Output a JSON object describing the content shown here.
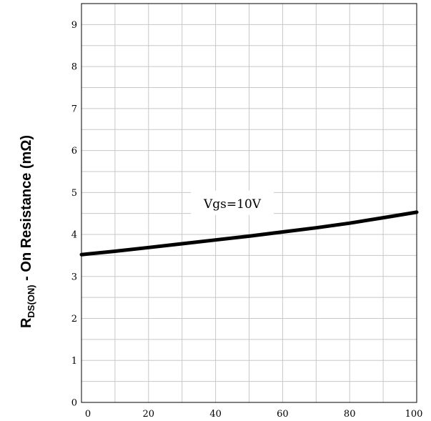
{
  "chart_data": {
    "type": "line",
    "ylabel": {
      "main": "R",
      "sub": "DS(ON)",
      "rest": " - On Resistance (mΩ)"
    },
    "xlim": [
      0,
      100
    ],
    "ylim": [
      0,
      9.5
    ],
    "xticks": [
      "0",
      "20",
      "40",
      "60",
      "80",
      "100"
    ],
    "yticks": [
      "0",
      "1",
      "2",
      "3",
      "4",
      "5",
      "6",
      "7",
      "8",
      "9"
    ],
    "grid": true,
    "series": [
      {
        "name": "Vgs=10V",
        "x": [
          0,
          10,
          20,
          30,
          40,
          50,
          60,
          70,
          80,
          90,
          100
        ],
        "y": [
          3.52,
          3.6,
          3.69,
          3.78,
          3.87,
          3.96,
          4.06,
          4.16,
          4.27,
          4.4,
          4.53
        ]
      }
    ],
    "annotations": [
      {
        "text": "Vgs=10V",
        "x": 45,
        "y": 4.6
      }
    ]
  }
}
